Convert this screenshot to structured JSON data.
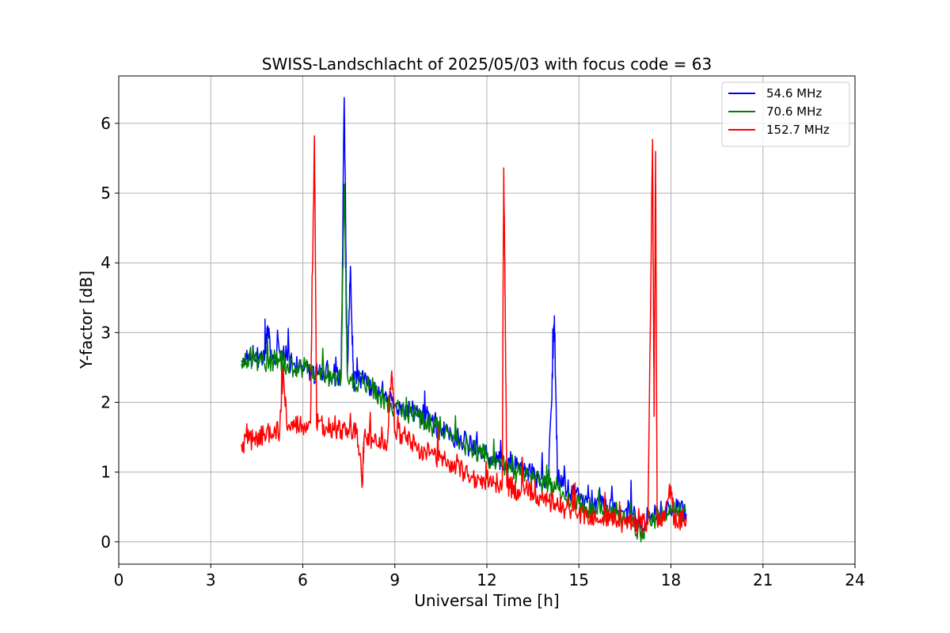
{
  "chart_data": {
    "type": "line",
    "title": "SWISS-Landschlacht of 2025/05/03 with focus code = 63",
    "xlabel": "Universal Time [h]",
    "ylabel": "Y-factor [dB]",
    "xlim": [
      0,
      24
    ],
    "ylim": [
      -0.32,
      6.68
    ],
    "xticks": [
      0,
      3,
      6,
      9,
      12,
      15,
      18,
      21,
      24
    ],
    "xtick_labels": [
      "0",
      "3",
      "6",
      "9",
      "12",
      "15",
      "18",
      "21",
      "24"
    ],
    "yticks": [
      0,
      1,
      2,
      3,
      4,
      5,
      6
    ],
    "ytick_labels": [
      "0",
      "1",
      "2",
      "3",
      "4",
      "5",
      "6"
    ],
    "grid": true,
    "legend_position": "top-right",
    "series": [
      {
        "name": " 54.6 MHz",
        "color": "#0000ff",
        "points": [
          [
            4.0,
            2.6
          ],
          [
            4.25,
            2.7
          ],
          [
            4.5,
            2.65
          ],
          [
            4.75,
            2.6
          ],
          [
            4.85,
            3.1
          ],
          [
            5.0,
            2.6
          ],
          [
            5.25,
            2.7
          ],
          [
            5.5,
            2.6
          ],
          [
            5.75,
            2.5
          ],
          [
            6.0,
            2.5
          ],
          [
            6.25,
            2.45
          ],
          [
            6.5,
            2.4
          ],
          [
            6.75,
            2.45
          ],
          [
            7.0,
            2.4
          ],
          [
            7.25,
            2.35
          ],
          [
            7.35,
            6.37
          ],
          [
            7.45,
            2.4
          ],
          [
            7.55,
            3.95
          ],
          [
            7.65,
            2.3
          ],
          [
            7.85,
            2.3
          ],
          [
            8.0,
            2.3
          ],
          [
            8.25,
            2.2
          ],
          [
            8.5,
            2.1
          ],
          [
            8.75,
            2.0
          ],
          [
            9.0,
            1.95
          ],
          [
            9.25,
            1.95
          ],
          [
            9.5,
            1.9
          ],
          [
            9.75,
            1.8
          ],
          [
            10.0,
            1.75
          ],
          [
            10.25,
            1.7
          ],
          [
            10.5,
            1.6
          ],
          [
            10.75,
            1.55
          ],
          [
            11.0,
            1.5
          ],
          [
            11.25,
            1.45
          ],
          [
            11.5,
            1.35
          ],
          [
            11.75,
            1.3
          ],
          [
            12.0,
            1.25
          ],
          [
            12.25,
            1.2
          ],
          [
            12.5,
            1.15
          ],
          [
            12.75,
            1.1
          ],
          [
            13.0,
            1.1
          ],
          [
            13.25,
            1.05
          ],
          [
            13.5,
            0.95
          ],
          [
            13.75,
            0.9
          ],
          [
            14.0,
            0.95
          ],
          [
            14.1,
            1.9
          ],
          [
            14.2,
            3.24
          ],
          [
            14.3,
            0.9
          ],
          [
            14.5,
            0.8
          ],
          [
            14.75,
            0.7
          ],
          [
            15.0,
            0.6
          ],
          [
            15.25,
            0.6
          ],
          [
            15.5,
            0.55
          ],
          [
            15.75,
            0.5
          ],
          [
            16.0,
            0.5
          ],
          [
            16.25,
            0.45
          ],
          [
            16.5,
            0.45
          ],
          [
            16.75,
            0.4
          ],
          [
            17.0,
            0.2
          ],
          [
            17.25,
            0.35
          ],
          [
            17.5,
            0.4
          ],
          [
            17.75,
            0.4
          ],
          [
            18.0,
            0.45
          ],
          [
            18.25,
            0.5
          ],
          [
            18.5,
            0.4
          ]
        ]
      },
      {
        "name": " 70.6 MHz",
        "color": "#008000",
        "points": [
          [
            4.0,
            2.55
          ],
          [
            4.25,
            2.65
          ],
          [
            4.5,
            2.6
          ],
          [
            4.75,
            2.55
          ],
          [
            5.0,
            2.6
          ],
          [
            5.25,
            2.6
          ],
          [
            5.5,
            2.55
          ],
          [
            5.75,
            2.5
          ],
          [
            6.0,
            2.5
          ],
          [
            6.25,
            2.45
          ],
          [
            6.5,
            2.4
          ],
          [
            6.75,
            2.4
          ],
          [
            7.0,
            2.35
          ],
          [
            7.25,
            2.35
          ],
          [
            7.35,
            5.13
          ],
          [
            7.45,
            2.4
          ],
          [
            7.65,
            2.3
          ],
          [
            8.0,
            2.3
          ],
          [
            8.25,
            2.2
          ],
          [
            8.5,
            2.1
          ],
          [
            8.75,
            2.0
          ],
          [
            9.0,
            1.95
          ],
          [
            9.25,
            1.9
          ],
          [
            9.5,
            1.85
          ],
          [
            9.75,
            1.8
          ],
          [
            10.0,
            1.75
          ],
          [
            10.25,
            1.65
          ],
          [
            10.5,
            1.6
          ],
          [
            10.75,
            1.55
          ],
          [
            11.0,
            1.45
          ],
          [
            11.25,
            1.4
          ],
          [
            11.5,
            1.35
          ],
          [
            11.75,
            1.3
          ],
          [
            12.0,
            1.2
          ],
          [
            12.25,
            1.15
          ],
          [
            12.5,
            1.1
          ],
          [
            12.75,
            1.05
          ],
          [
            13.0,
            1.0
          ],
          [
            13.25,
            0.95
          ],
          [
            13.5,
            0.9
          ],
          [
            13.75,
            0.85
          ],
          [
            14.0,
            0.8
          ],
          [
            14.25,
            0.75
          ],
          [
            14.5,
            0.7
          ],
          [
            14.75,
            0.6
          ],
          [
            15.0,
            0.55
          ],
          [
            15.25,
            0.5
          ],
          [
            15.5,
            0.45
          ],
          [
            15.75,
            0.45
          ],
          [
            16.0,
            0.4
          ],
          [
            16.25,
            0.4
          ],
          [
            16.5,
            0.35
          ],
          [
            16.75,
            0.3
          ],
          [
            17.0,
            0.1
          ],
          [
            17.25,
            0.3
          ],
          [
            17.5,
            0.35
          ],
          [
            17.75,
            0.35
          ],
          [
            18.0,
            0.4
          ],
          [
            18.25,
            0.45
          ],
          [
            18.5,
            0.45
          ]
        ]
      },
      {
        "name": " 152.7 MHz",
        "color": "#ff0000",
        "points": [
          [
            4.0,
            1.4
          ],
          [
            4.25,
            1.45
          ],
          [
            4.5,
            1.5
          ],
          [
            4.75,
            1.55
          ],
          [
            5.0,
            1.55
          ],
          [
            5.25,
            1.6
          ],
          [
            5.35,
            2.45
          ],
          [
            5.5,
            1.6
          ],
          [
            5.75,
            1.65
          ],
          [
            6.0,
            1.65
          ],
          [
            6.25,
            1.7
          ],
          [
            6.38,
            5.82
          ],
          [
            6.45,
            1.7
          ],
          [
            6.5,
            1.75
          ],
          [
            6.75,
            1.65
          ],
          [
            7.0,
            1.6
          ],
          [
            7.25,
            1.6
          ],
          [
            7.5,
            1.55
          ],
          [
            7.75,
            1.55
          ],
          [
            7.95,
            0.85
          ],
          [
            8.0,
            1.5
          ],
          [
            8.25,
            1.5
          ],
          [
            8.5,
            1.5
          ],
          [
            8.75,
            1.45
          ],
          [
            8.9,
            2.45
          ],
          [
            9.0,
            1.6
          ],
          [
            9.25,
            1.55
          ],
          [
            9.5,
            1.45
          ],
          [
            9.75,
            1.35
          ],
          [
            10.0,
            1.3
          ],
          [
            10.25,
            1.25
          ],
          [
            10.5,
            1.2
          ],
          [
            10.75,
            1.15
          ],
          [
            11.0,
            1.1
          ],
          [
            11.25,
            1.0
          ],
          [
            11.5,
            0.95
          ],
          [
            11.75,
            0.9
          ],
          [
            12.0,
            0.9
          ],
          [
            12.25,
            0.85
          ],
          [
            12.5,
            0.8
          ],
          [
            12.55,
            5.36
          ],
          [
            12.6,
            3.2
          ],
          [
            12.65,
            0.8
          ],
          [
            12.75,
            0.8
          ],
          [
            13.0,
            0.75
          ],
          [
            13.25,
            0.75
          ],
          [
            13.5,
            0.7
          ],
          [
            13.75,
            0.65
          ],
          [
            14.0,
            0.6
          ],
          [
            14.25,
            0.55
          ],
          [
            14.5,
            0.5
          ],
          [
            14.75,
            0.45
          ],
          [
            15.0,
            0.4
          ],
          [
            15.25,
            0.35
          ],
          [
            15.5,
            0.35
          ],
          [
            15.75,
            0.3
          ],
          [
            16.0,
            0.3
          ],
          [
            16.25,
            0.3
          ],
          [
            16.5,
            0.25
          ],
          [
            16.75,
            0.25
          ],
          [
            17.0,
            0.25
          ],
          [
            17.25,
            0.25
          ],
          [
            17.4,
            5.77
          ],
          [
            17.45,
            1.8
          ],
          [
            17.5,
            5.6
          ],
          [
            17.55,
            0.3
          ],
          [
            17.75,
            0.3
          ],
          [
            18.0,
            0.8
          ],
          [
            18.1,
            0.3
          ],
          [
            18.25,
            0.3
          ],
          [
            18.5,
            0.35
          ]
        ]
      }
    ]
  }
}
